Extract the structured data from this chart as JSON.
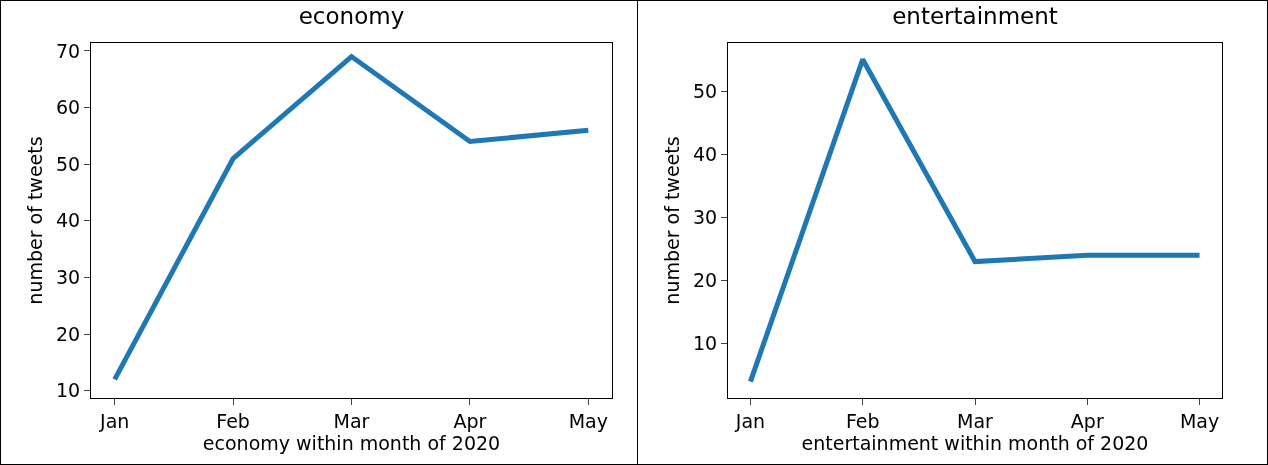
{
  "chart_data": [
    {
      "type": "line",
      "title": "economy",
      "xlabel": "economy within month of 2020",
      "ylabel": "number of tweets",
      "categories": [
        "Jan",
        "Feb",
        "Mar",
        "Apr",
        "May"
      ],
      "values": [
        12,
        51,
        69,
        54,
        56
      ],
      "color": "#1f77b4",
      "ylim": [
        8.7,
        71.4
      ],
      "yticks": [
        10,
        20,
        30,
        40,
        50,
        60,
        70
      ],
      "grid": false,
      "legend": false
    },
    {
      "type": "line",
      "title": "entertainment",
      "xlabel": "entertainment within month of 2020",
      "ylabel": "number of tweets",
      "categories": [
        "Jan",
        "Feb",
        "Mar",
        "Apr",
        "May"
      ],
      "values": [
        4,
        55,
        23,
        24,
        24
      ],
      "color": "#1f77b4",
      "ylim": [
        1.4,
        57.6
      ],
      "yticks": [
        10,
        20,
        30,
        40,
        50
      ],
      "grid": false,
      "legend": false
    }
  ]
}
